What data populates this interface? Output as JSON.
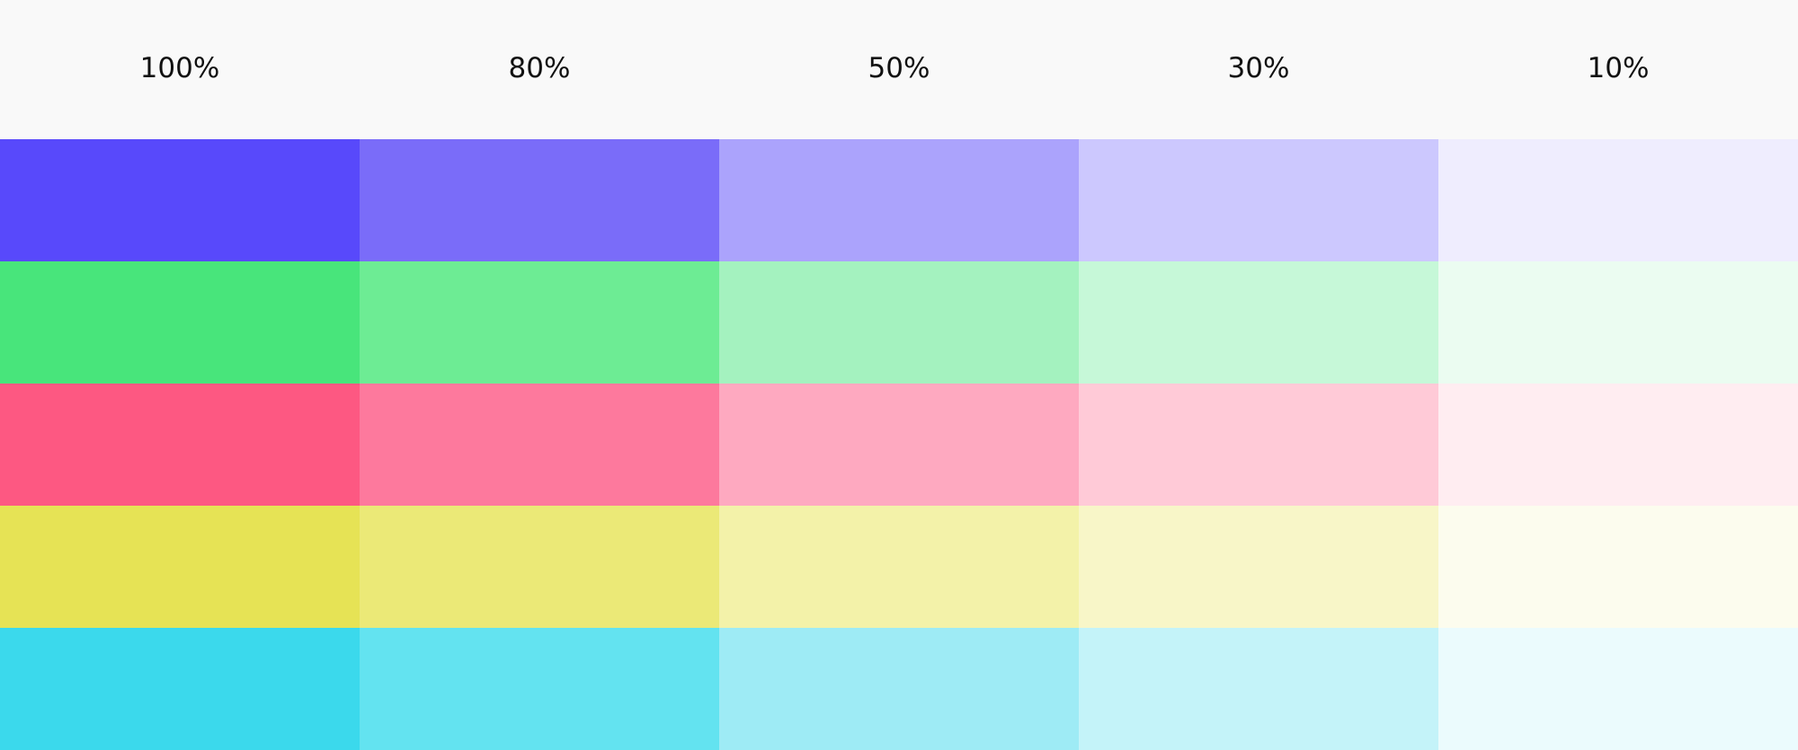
{
  "columns": [
    "100%",
    "80%",
    "50%",
    "30%",
    "10%"
  ],
  "rows": [
    {
      "colors": [
        "#5849fb",
        "#7a6cf9",
        "#aba3fc",
        "#ccc8fe",
        "#efedfe"
      ]
    },
    {
      "colors": [
        "#48e57b",
        "#6dec94",
        "#a4f2bf",
        "#c6f8d8",
        "#ebfcf1"
      ]
    },
    {
      "colors": [
        "#fd5882",
        "#fd799d",
        "#fea9c0",
        "#ffcad7",
        "#ffedf1"
      ]
    },
    {
      "colors": [
        "#e6e355",
        "#ebe977",
        "#f3f2a9",
        "#f8f6c8",
        "#fcfcee"
      ]
    },
    {
      "colors": [
        "#3bd9ec",
        "#63e3f0",
        "#9eebf5",
        "#c4f3f9",
        "#ebfbfd"
      ]
    }
  ]
}
